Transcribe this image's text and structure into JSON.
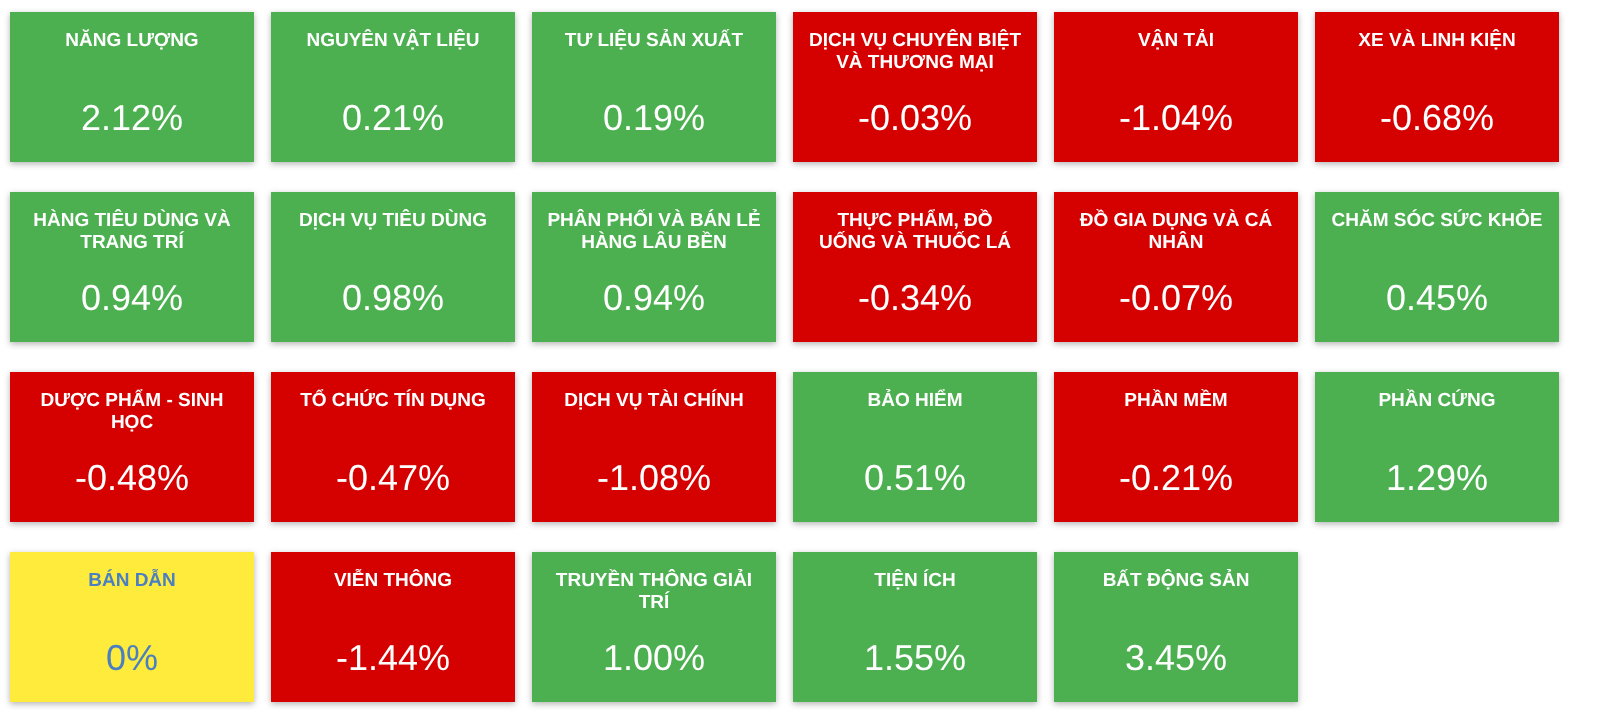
{
  "chart_data": {
    "type": "other",
    "categories": [
      "NĂNG LƯỢNG",
      "NGUYÊN VẬT LIỆU",
      "TƯ LIỆU SẢN XUẤT",
      "DỊCH VỤ CHUYÊN BIỆT VÀ THƯƠNG MẠI",
      "VẬN TẢI",
      "XE VÀ LINH KIỆN",
      "HÀNG TIÊU DÙNG VÀ TRANG TRÍ",
      "DỊCH VỤ TIÊU DÙNG",
      "PHÂN PHỐI VÀ BÁN LẺ HÀNG LÂU BỀN",
      "THỰC PHẨM, ĐỒ UỐNG VÀ THUỐC LÁ",
      "ĐỒ GIA DỤNG VÀ CÁ NHÂN",
      "CHĂM SÓC SỨC KHỎE",
      "DƯỢC PHẨM - SINH HỌC",
      "TỔ CHỨC TÍN DỤNG",
      "DỊCH VỤ TÀI CHÍNH",
      "BẢO HIỂM",
      "PHẦN MỀM",
      "PHẦN CỨNG",
      "BÁN DẪN",
      "VIỄN THÔNG",
      "TRUYỀN THÔNG GIẢI TRÍ",
      "TIỆN ÍCH",
      "BẤT ĐỘNG SẢN"
    ],
    "values": [
      2.12,
      0.21,
      0.19,
      -0.03,
      -1.04,
      -0.68,
      0.94,
      0.98,
      0.94,
      -0.34,
      -0.07,
      0.45,
      -0.48,
      -0.47,
      -1.08,
      0.51,
      -0.21,
      1.29,
      0,
      -1.44,
      1.0,
      1.55,
      3.45
    ],
    "value_labels": [
      "2.12%",
      "0.21%",
      "0.19%",
      "-0.03%",
      "-1.04%",
      "-0.68%",
      "0.94%",
      "0.98%",
      "0.94%",
      "-0.34%",
      "-0.07%",
      "0.45%",
      "-0.48%",
      "-0.47%",
      "-1.08%",
      "0.51%",
      "-0.21%",
      "1.29%",
      "0%",
      "-1.44%",
      "1.00%",
      "1.55%",
      "3.45%"
    ],
    "colors": [
      "#4caf50",
      "#4caf50",
      "#4caf50",
      "#d50000",
      "#d50000",
      "#d50000",
      "#4caf50",
      "#4caf50",
      "#4caf50",
      "#d50000",
      "#d50000",
      "#4caf50",
      "#d50000",
      "#d50000",
      "#d50000",
      "#4caf50",
      "#d50000",
      "#4caf50",
      "#ffeb3b",
      "#d50000",
      "#4caf50",
      "#4caf50",
      "#4caf50"
    ]
  }
}
